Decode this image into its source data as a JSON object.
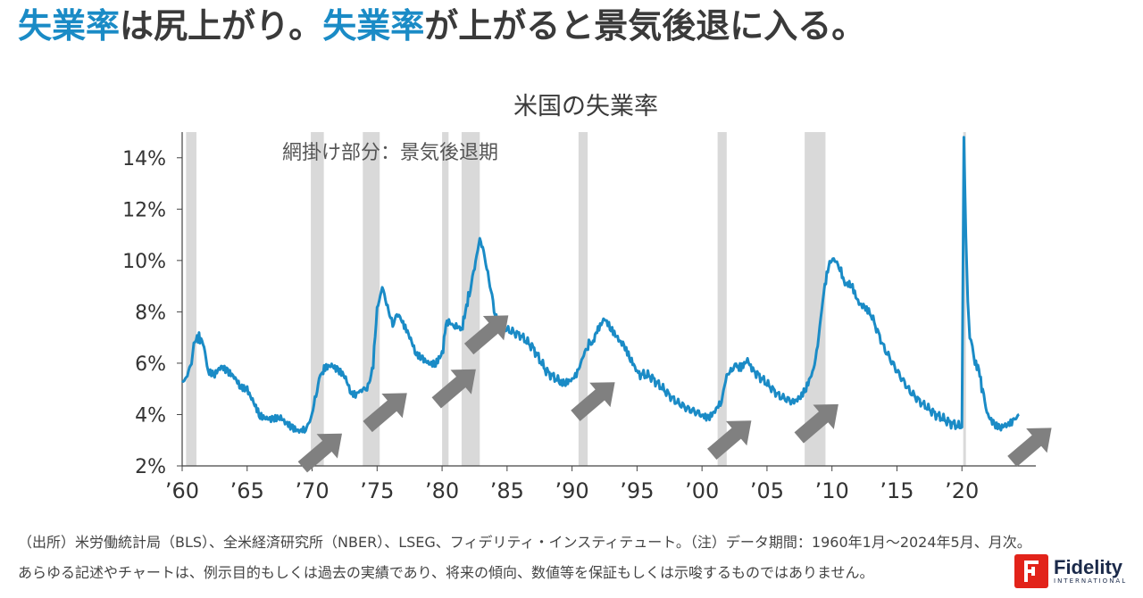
{
  "headline": {
    "part1": "失業率",
    "part2": "は尻上がり。",
    "part3": "失業率",
    "part4": "が上がると景気後退に入る。"
  },
  "chart_data": {
    "type": "line",
    "title": "米国の失業率",
    "annotation": "網掛け部分：景気後退期",
    "xlim": [
      1960,
      2025
    ],
    "ylim": [
      2,
      15
    ],
    "yticks": [
      2,
      4,
      6,
      8,
      10,
      12,
      14
    ],
    "ytick_labels": [
      "2%",
      "4%",
      "6%",
      "8%",
      "10%",
      "12%",
      "14%"
    ],
    "xticks": [
      1960,
      1965,
      1970,
      1975,
      1980,
      1985,
      1990,
      1995,
      2000,
      2005,
      2010,
      2015,
      2020
    ],
    "xtick_labels": [
      "’60",
      "’65",
      "’70",
      "’75",
      "’80",
      "’85",
      "’90",
      "’95",
      "’00",
      "’05",
      "’10",
      "’15",
      "’20"
    ],
    "recessions": [
      [
        1960.3,
        1961.1
      ],
      [
        1969.9,
        1970.9
      ],
      [
        1973.9,
        1975.2
      ],
      [
        1980.0,
        1980.5
      ],
      [
        1981.5,
        1982.9
      ],
      [
        1990.5,
        1991.2
      ],
      [
        2001.2,
        2001.9
      ],
      [
        2007.9,
        2009.5
      ],
      [
        2020.1,
        2020.3
      ]
    ],
    "series": [
      {
        "name": "米国の失業率",
        "x": [
          1960.0,
          1960.4,
          1960.8,
          1961.0,
          1961.3,
          1961.6,
          1962.0,
          1962.5,
          1963.0,
          1963.5,
          1964.0,
          1964.5,
          1965.0,
          1965.5,
          1966.0,
          1966.5,
          1967.0,
          1967.5,
          1968.0,
          1968.5,
          1969.0,
          1969.5,
          1969.9,
          1970.3,
          1970.7,
          1971.0,
          1971.5,
          1972.0,
          1972.5,
          1973.0,
          1973.5,
          1973.9,
          1974.3,
          1974.7,
          1975.0,
          1975.4,
          1975.8,
          1976.2,
          1976.6,
          1977.0,
          1977.5,
          1978.0,
          1978.5,
          1979.0,
          1979.5,
          1980.0,
          1980.3,
          1980.6,
          1981.0,
          1981.5,
          1981.8,
          1982.1,
          1982.5,
          1982.9,
          1983.2,
          1983.6,
          1984.0,
          1984.5,
          1985.0,
          1986.0,
          1987.0,
          1988.0,
          1989.0,
          1989.5,
          1990.0,
          1990.5,
          1990.9,
          1991.3,
          1991.7,
          1992.0,
          1992.5,
          1993.0,
          1993.5,
          1994.0,
          1994.5,
          1995.0,
          1996.0,
          1997.0,
          1998.0,
          1999.0,
          2000.0,
          2000.5,
          2001.0,
          2001.5,
          2001.9,
          2002.3,
          2002.7,
          2003.0,
          2003.5,
          2004.0,
          2005.0,
          2006.0,
          2007.0,
          2007.5,
          2008.0,
          2008.5,
          2008.9,
          2009.3,
          2009.6,
          2009.9,
          2010.3,
          2010.7,
          2011.0,
          2011.5,
          2012.0,
          2012.5,
          2013.0,
          2014.0,
          2015.0,
          2016.0,
          2017.0,
          2018.0,
          2019.0,
          2020.0,
          2020.15,
          2020.3,
          2020.45,
          2020.6,
          2020.8,
          2021.0,
          2021.3,
          2021.6,
          2022.0,
          2022.5,
          2023.0,
          2023.5,
          2024.0,
          2024.4
        ],
        "values": [
          5.2,
          5.5,
          6.3,
          6.9,
          7.0,
          6.8,
          5.6,
          5.5,
          5.8,
          5.6,
          5.4,
          5.0,
          4.9,
          4.4,
          3.9,
          3.8,
          3.8,
          3.9,
          3.7,
          3.5,
          3.4,
          3.5,
          3.9,
          4.8,
          5.5,
          5.9,
          6.0,
          5.8,
          5.6,
          4.9,
          4.8,
          4.9,
          5.2,
          6.0,
          8.1,
          9.0,
          8.3,
          7.6,
          7.8,
          7.5,
          7.0,
          6.3,
          6.1,
          5.9,
          5.9,
          6.3,
          7.5,
          7.7,
          7.4,
          7.3,
          8.0,
          8.8,
          9.7,
          10.8,
          10.4,
          9.4,
          8.0,
          7.5,
          7.3,
          7.1,
          6.6,
          5.7,
          5.3,
          5.3,
          5.4,
          5.7,
          6.2,
          6.8,
          7.0,
          7.3,
          7.7,
          7.3,
          6.9,
          6.6,
          6.1,
          5.6,
          5.5,
          5.0,
          4.5,
          4.2,
          4.0,
          3.9,
          4.2,
          4.6,
          5.6,
          5.8,
          5.8,
          5.9,
          6.2,
          5.7,
          5.2,
          4.7,
          4.5,
          4.6,
          5.0,
          5.6,
          6.8,
          8.5,
          9.5,
          10.0,
          9.8,
          9.6,
          9.0,
          9.0,
          8.3,
          8.1,
          7.9,
          6.6,
          5.7,
          4.9,
          4.4,
          4.0,
          3.7,
          3.5,
          14.8,
          11.0,
          8.4,
          7.0,
          6.7,
          6.0,
          5.8,
          4.8,
          4.0,
          3.6,
          3.5,
          3.6,
          3.7,
          4.0
        ]
      }
    ],
    "arrows_at": [
      1969.0,
      1974.0,
      1979.3,
      1981.8,
      1990.0,
      2000.5,
      2007.2,
      2023.6
    ]
  },
  "footer": {
    "source": "（出所）米労働統計局（BLS）、全米経済研究所（NBER）、LSEG、フィデリティ・インスティテュート。（注）データ期間：1960年1月～2024年5月、月次。",
    "disclaimer": "あらゆる記述やチャートは、例示目的もしくは過去の実績であり、将来の傾向、数値等を保証もしくは示唆するものではありません。"
  },
  "logo": {
    "word": "Fidelity",
    "sub": "INTERNATIONAL"
  },
  "colors": {
    "accent": "#1a8bc6",
    "line": "#1a8bc6",
    "recession": "#d9d9d9",
    "arrow": "#808080",
    "brand": "#e2231a"
  }
}
